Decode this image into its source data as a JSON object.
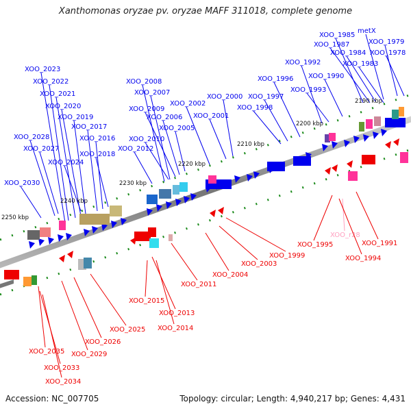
{
  "title": "Xanthomonas oryzae pv. oryzae MAFF 311018, complete genome",
  "accession": "Accession: NC_007705",
  "summary": "Topology: circular; Length: 4,940,217 bp; Genes: 4,431",
  "colors": {
    "forward": "#0000ee",
    "reverse": "#ee0000",
    "trna": "#ff9fbf"
  },
  "scale_labels": [
    "2190 kbp",
    "2200 kbp",
    "2210 kbp",
    "2220 kbp",
    "2230 kbp",
    "2240 kbp",
    "2250 kbp"
  ],
  "top_genes": [
    "XOO_2023",
    "XOO_2022",
    "XOO_2021",
    "XOO_2020",
    "XOO_2019",
    "XOO_2017",
    "XOO_2028",
    "XOO_2016",
    "XOO_2027",
    "XOO_2018",
    "XOO_2024",
    "XOO_2030",
    "XOO_2008",
    "XOO_2007",
    "XOO_2009",
    "XOO_2006",
    "XOO_2005",
    "XOO_2010",
    "XOO_2012",
    "XOO_2002",
    "XOO_2000",
    "XOO_2001",
    "XOO_1998",
    "XOO_1997",
    "XOO_1996",
    "XOO_1992",
    "XOO_1993",
    "XOO_1990",
    "XOO_1985",
    "XOO_1987",
    "metX",
    "XOO_1979",
    "XOO_1984",
    "XOO_1978",
    "XOO_1983"
  ],
  "bottom_genes": [
    "XOO_1995",
    "XOO_r28",
    "XOO_1991",
    "XOO_1994",
    "XOO_1999",
    "XOO_2003",
    "XOO_2004",
    "XOO_2011",
    "XOO_2015",
    "XOO_2013",
    "XOO_2014",
    "XOO_2025",
    "XOO_2026",
    "XOO_2029",
    "XOO_2035",
    "XOO_2033",
    "XOO_2034"
  ]
}
